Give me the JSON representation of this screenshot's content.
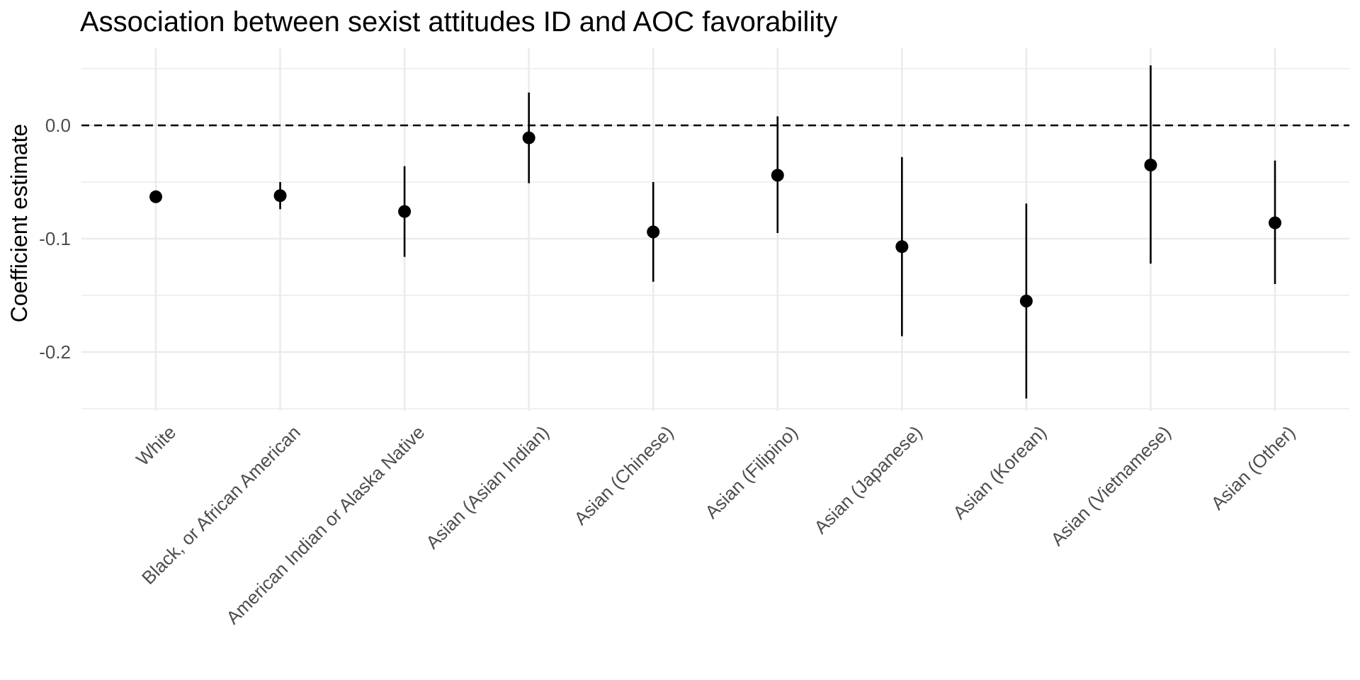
{
  "chart_data": {
    "type": "scatter",
    "title": "Association between sexist attitudes ID and AOC favorability",
    "xlabel": "",
    "ylabel": "Coefficient estimate",
    "categories": [
      "White",
      "Black, or African American",
      "American Indian or Alaska Native",
      "Asian (Asian Indian)",
      "Asian (Chinese)",
      "Asian (Filipino)",
      "Asian (Japanese)",
      "Asian (Korean)",
      "Asian (Vietnamese)",
      "Asian (Other)"
    ],
    "series": [
      {
        "estimates": [
          -0.063,
          -0.062,
          -0.076,
          -0.011,
          -0.094,
          -0.044,
          -0.107,
          -0.155,
          -0.035,
          -0.086
        ],
        "ci_low": [
          -0.063,
          -0.074,
          -0.116,
          -0.051,
          -0.138,
          -0.095,
          -0.186,
          -0.241,
          -0.122,
          -0.14
        ],
        "ci_high": [
          -0.063,
          -0.05,
          -0.036,
          0.029,
          -0.05,
          0.008,
          -0.028,
          -0.069,
          0.053,
          -0.031
        ]
      }
    ],
    "reference_line": 0.0,
    "ylim": [
      -0.25,
      0.05
    ],
    "yticks": [
      0.0,
      -0.1,
      -0.2
    ],
    "ytick_labels": [
      "0.0",
      "-0.1",
      "-0.2"
    ],
    "grid": true,
    "legend": "none",
    "colors": {
      "points": "#000000",
      "grid": "#ebebeb",
      "reference": "#000000"
    }
  }
}
